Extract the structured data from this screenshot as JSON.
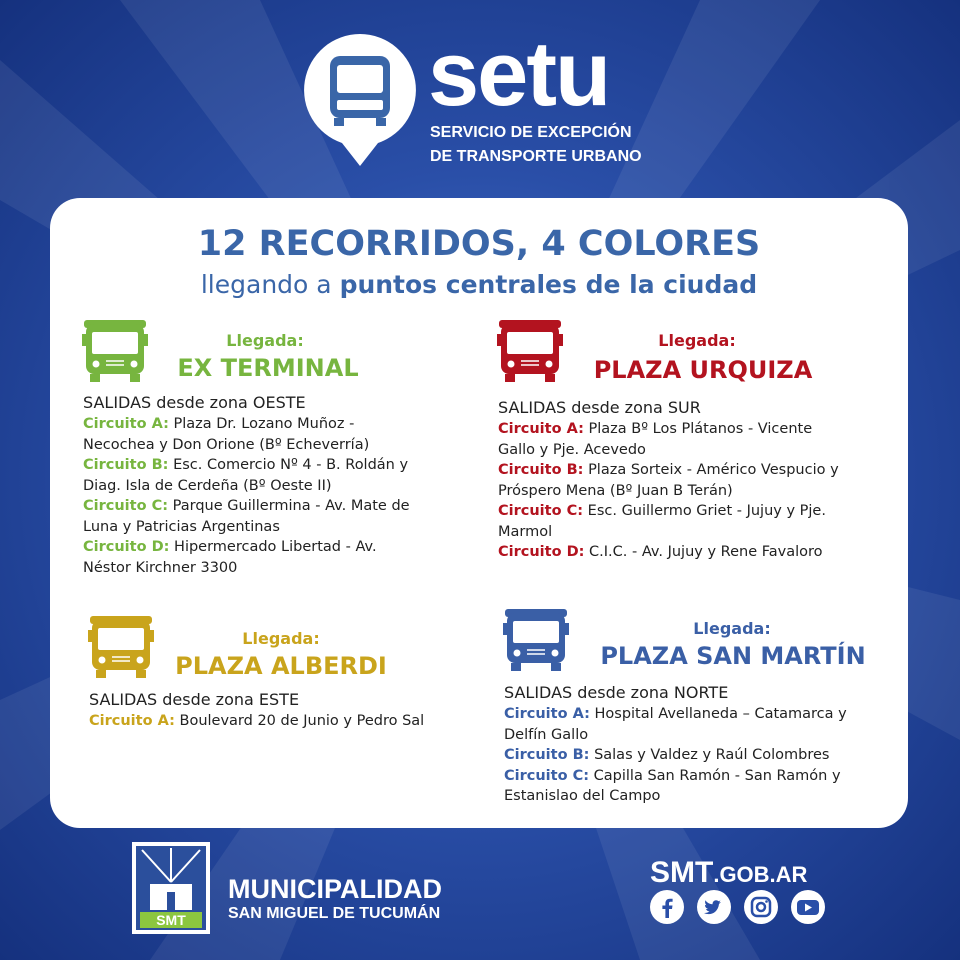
{
  "header": {
    "brand": "setu",
    "subtitle_line1": "SERVICIO DE EXCEPCIÓN",
    "subtitle_line2": "DE TRANSPORTE URBANO"
  },
  "card": {
    "title": "12 RECORRIDOS, 4 COLORES",
    "subtitle_prefix": "llegando a",
    "subtitle_emphasis": "puntos centrales de la ciudad"
  },
  "routes": [
    {
      "arrival_label": "Llegada:",
      "destination": "EX TERMINAL",
      "color": "#77b53f",
      "departures": "SALIDAS desde zona OESTE",
      "circuits": [
        {
          "name": "Circuito A:",
          "text": "Plaza Dr. Lozano Muñoz - Necochea y Don Orione (Bº Echeverría)"
        },
        {
          "name": "Circuito B:",
          "text": "Esc. Comercio Nº 4 - B. Roldán y Diag. Isla de Cerdeña (Bº Oeste II)"
        },
        {
          "name": "Circuito C:",
          "text": "Parque Guillermina - Av. Mate de Luna y Patricias Argentinas"
        },
        {
          "name": "Circuito D:",
          "text": "Hipermercado Libertad - Av. Néstor Kirchner 3300"
        }
      ]
    },
    {
      "arrival_label": "Llegada:",
      "destination": "PLAZA URQUIZA",
      "color": "#b3131f",
      "departures": "SALIDAS desde zona SUR",
      "circuits": [
        {
          "name": "Circuito A:",
          "text": "Plaza Bº Los Plátanos - Vicente Gallo y Pje. Acevedo"
        },
        {
          "name": "Circuito B:",
          "text": "Plaza Sorteix - Américo Vespucio y Próspero Mena (Bº Juan B Terán)"
        },
        {
          "name": "Circuito C:",
          "text": "Esc. Guillermo Griet - Jujuy y Pje. Marmol"
        },
        {
          "name": "Circuito D:",
          "text": "C.I.C. - Av. Jujuy y Rene Favaloro"
        }
      ]
    },
    {
      "arrival_label": "Llegada:",
      "destination": "PLAZA ALBERDI",
      "color": "#c9a41c",
      "departures": "SALIDAS desde zona ESTE",
      "circuits": [
        {
          "name": "Circuito A:",
          "text": "Boulevard 20 de Junio y Pedro Sal"
        }
      ]
    },
    {
      "arrival_label": "Llegada:",
      "destination": "PLAZA SAN MARTÍN",
      "color": "#3a5fa6",
      "departures": "SALIDAS desde zona NORTE",
      "circuits": [
        {
          "name": "Circuito A:",
          "text": "Hospital Avellaneda – Catamarca y Delfín Gallo"
        },
        {
          "name": "Circuito B:",
          "text": "Salas y Valdez y Raúl Colombres"
        },
        {
          "name": "Circuito C:",
          "text": "Capilla San Ramón - San Ramón y Estanislao del Campo"
        }
      ]
    }
  ],
  "footer": {
    "org_name": "MUNICIPALIDAD",
    "org_city": "SAN MIGUEL DE TUCUMÁN",
    "badge": "SMT",
    "website_main": "SMT",
    "website_domain": ".GOB.AR"
  }
}
